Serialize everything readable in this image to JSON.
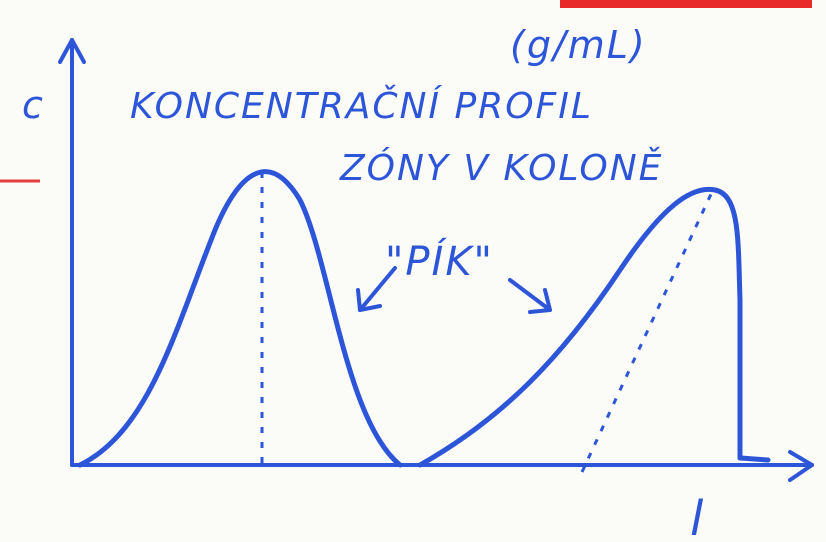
{
  "labels": {
    "y_axis": "c",
    "unit": "(g/mL)",
    "title_line1": "KONCENTRAČNÍ PROFIL",
    "title_line2": "ZÓNY V KOLONĚ",
    "peak": "\"PÍK\"",
    "x_axis": "l"
  }
}
